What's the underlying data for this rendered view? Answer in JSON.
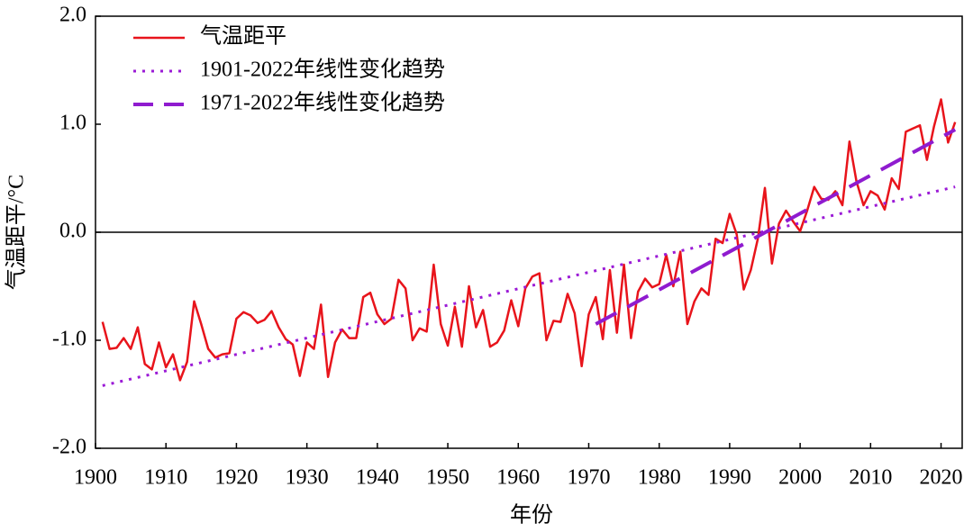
{
  "chart_data": {
    "type": "line",
    "xlabel": "年份",
    "ylabel": "气温距平/°C",
    "xlim": [
      1900,
      2023
    ],
    "ylim": [
      -2,
      2
    ],
    "xticks": [
      1900,
      1910,
      1920,
      1930,
      1940,
      1950,
      1960,
      1970,
      1980,
      1990,
      2000,
      2010,
      2020
    ],
    "yticks": [
      {
        "value": -2,
        "label": "-2.0"
      },
      {
        "value": -1,
        "label": "-1.0"
      },
      {
        "value": 0,
        "label": "0.0"
      },
      {
        "value": 1,
        "label": "1.0"
      },
      {
        "value": 2,
        "label": "2.0"
      }
    ],
    "reference_line": 0,
    "legend": "upper left",
    "x": [
      1901,
      1902,
      1903,
      1904,
      1905,
      1906,
      1907,
      1908,
      1909,
      1910,
      1911,
      1912,
      1913,
      1914,
      1915,
      1916,
      1917,
      1918,
      1919,
      1920,
      1921,
      1922,
      1923,
      1924,
      1925,
      1926,
      1927,
      1928,
      1929,
      1930,
      1931,
      1932,
      1933,
      1934,
      1935,
      1936,
      1937,
      1938,
      1939,
      1940,
      1941,
      1942,
      1943,
      1944,
      1945,
      1946,
      1947,
      1948,
      1949,
      1950,
      1951,
      1952,
      1953,
      1954,
      1955,
      1956,
      1957,
      1958,
      1959,
      1960,
      1961,
      1962,
      1963,
      1964,
      1965,
      1966,
      1967,
      1968,
      1969,
      1970,
      1971,
      1972,
      1973,
      1974,
      1975,
      1976,
      1977,
      1978,
      1979,
      1980,
      1981,
      1982,
      1983,
      1984,
      1985,
      1986,
      1987,
      1988,
      1989,
      1990,
      1991,
      1992,
      1993,
      1994,
      1995,
      1996,
      1997,
      1998,
      1999,
      2000,
      2001,
      2002,
      2003,
      2004,
      2005,
      2006,
      2007,
      2008,
      2009,
      2010,
      2011,
      2012,
      2013,
      2014,
      2015,
      2016,
      2017,
      2018,
      2019,
      2020,
      2021,
      2022
    ],
    "series": [
      {
        "name": "气温距平",
        "color": "#e8141b",
        "style": "solid",
        "values": [
          -0.83,
          -1.08,
          -1.07,
          -0.98,
          -1.08,
          -0.88,
          -1.22,
          -1.27,
          -1.02,
          -1.25,
          -1.13,
          -1.37,
          -1.2,
          -0.64,
          -0.85,
          -1.08,
          -1.16,
          -1.13,
          -1.12,
          -0.8,
          -0.74,
          -0.77,
          -0.84,
          -0.81,
          -0.73,
          -0.88,
          -0.99,
          -1.04,
          -1.33,
          -1.02,
          -1.08,
          -0.67,
          -1.34,
          -1.02,
          -0.9,
          -0.98,
          -0.98,
          -0.6,
          -0.56,
          -0.76,
          -0.85,
          -0.8,
          -0.44,
          -0.52,
          -1.0,
          -0.89,
          -0.92,
          -0.3,
          -0.85,
          -1.05,
          -0.69,
          -1.06,
          -0.5,
          -0.88,
          -0.72,
          -1.06,
          -1.02,
          -0.91,
          -0.63,
          -0.87,
          -0.52,
          -0.41,
          -0.38,
          -1.0,
          -0.82,
          -0.83,
          -0.57,
          -0.75,
          -1.24,
          -0.76,
          -0.6,
          -0.99,
          -0.35,
          -0.93,
          -0.3,
          -0.98,
          -0.55,
          -0.43,
          -0.51,
          -0.48,
          -0.21,
          -0.5,
          -0.18,
          -0.85,
          -0.64,
          -0.52,
          -0.58,
          -0.06,
          -0.1,
          0.17,
          -0.02,
          -0.53,
          -0.35,
          -0.06,
          0.41,
          -0.29,
          0.08,
          0.2,
          0.1,
          0.01,
          0.2,
          0.42,
          0.31,
          0.3,
          0.38,
          0.25,
          0.84,
          0.47,
          0.25,
          0.38,
          0.34,
          0.21,
          0.5,
          0.4,
          0.93,
          0.96,
          0.99,
          0.67,
          0.98,
          1.23,
          0.83,
          1.02
        ]
      },
      {
        "name": "1901-2022年线性变化趋势",
        "color": "#9b1bd6",
        "style": "dotted",
        "x": [
          1901,
          2022
        ],
        "values": [
          -1.42,
          0.42
        ]
      },
      {
        "name": "1971-2022年线性变化趋势",
        "color": "#8f1bcf",
        "style": "dashed",
        "x": [
          1971,
          2022
        ],
        "values": [
          -0.85,
          0.95
        ]
      }
    ]
  }
}
